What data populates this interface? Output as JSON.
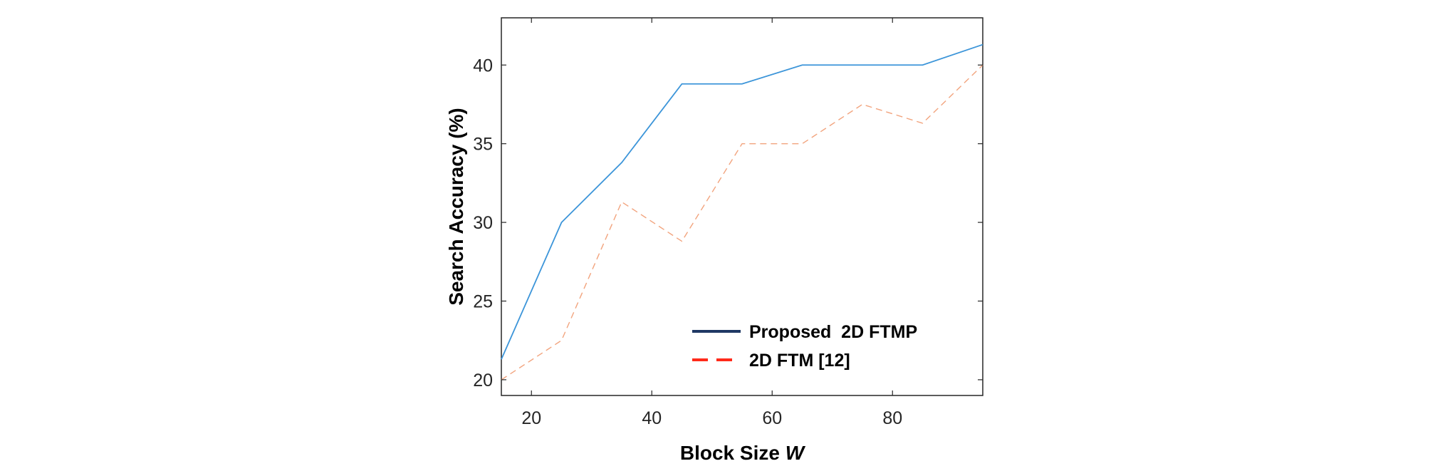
{
  "chart_data": {
    "type": "line",
    "x": [
      15,
      25,
      35,
      45,
      55,
      65,
      75,
      85,
      95
    ],
    "series": [
      {
        "name": "Proposed  2D FTMP",
        "values": [
          21.3,
          30.0,
          33.8,
          38.8,
          38.8,
          40.0,
          40.0,
          40.0,
          41.3
        ],
        "color": "#3c95d9",
        "legend_color": "#1f3864",
        "style": "solid"
      },
      {
        "name": "2D FTM [12]",
        "values": [
          20.0,
          22.5,
          31.3,
          28.8,
          35.0,
          35.0,
          37.5,
          36.3,
          40.0
        ],
        "color": "#f2a47e",
        "legend_color": "#ff2a1a",
        "style": "dashed"
      }
    ],
    "xlabel_main": "Block Size ",
    "xlabel_var": "W",
    "ylabel": "Search Accuracy (%)",
    "xlim": [
      15,
      95
    ],
    "ylim": [
      19,
      43
    ],
    "xticks": [
      20,
      40,
      60,
      80
    ],
    "yticks": [
      20,
      25,
      30,
      35,
      40
    ],
    "grid": false,
    "legend_position": "bottom-right"
  }
}
